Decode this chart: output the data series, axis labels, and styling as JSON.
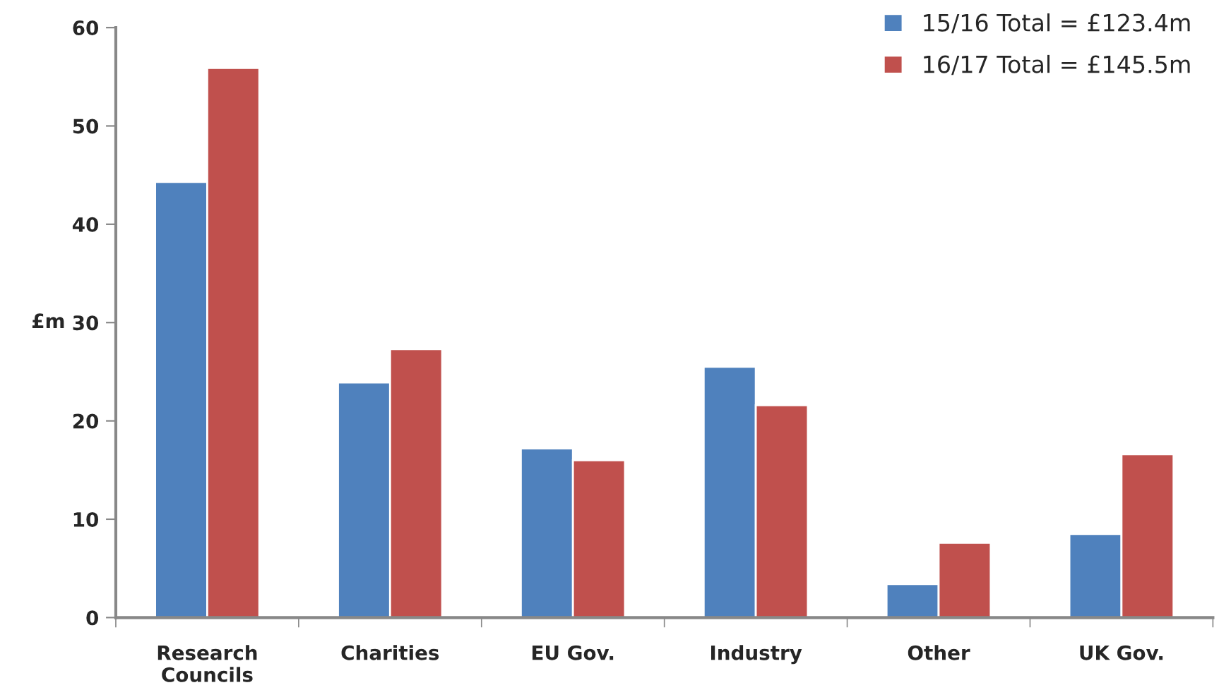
{
  "chart_data": {
    "type": "bar",
    "ylabel": "£m",
    "categories": [
      "Research\nCouncils",
      "Charities",
      "EU Gov.",
      "Industry",
      "Other",
      "UK Gov."
    ],
    "series": [
      {
        "name": "15/16 Total = £123.4m",
        "color": "#4f81bd",
        "values": [
          44.3,
          23.9,
          17.2,
          25.5,
          3.4,
          8.5
        ]
      },
      {
        "name": "16/17 Total = £145.5m",
        "color": "#c0504d",
        "values": [
          55.9,
          27.3,
          16.0,
          21.6,
          7.6,
          16.6
        ]
      }
    ],
    "ylim": [
      0,
      60
    ],
    "yticks": [
      0,
      10,
      20,
      30,
      40,
      50,
      60
    ],
    "grid": false,
    "legend": "top right"
  }
}
